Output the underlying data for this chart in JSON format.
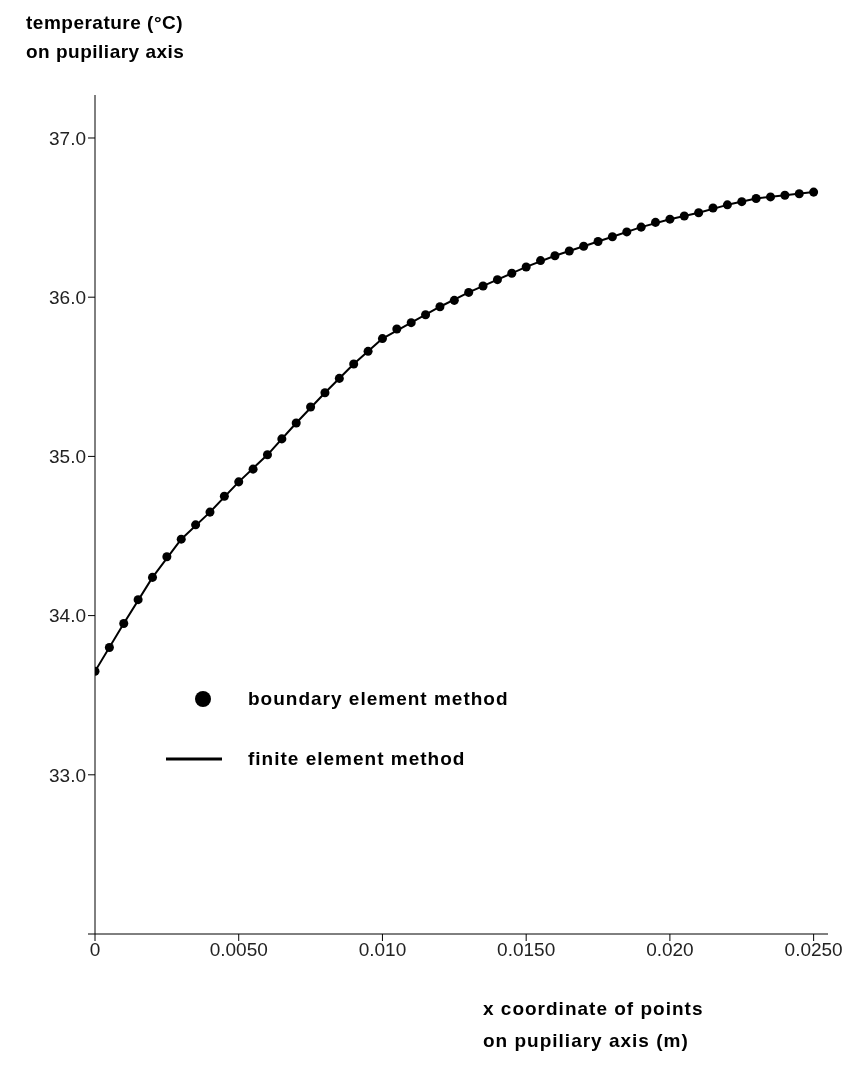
{
  "chart_data": {
    "type": "scatter",
    "ylabel": "temperature (°C)\non pupiliary axis",
    "xlabel": "x coordinate of points\non pupiliary axis (m)",
    "xlim": [
      0,
      0.0255
    ],
    "xticks": [
      0,
      {
        "value": 0.005,
        "label": "0.0050"
      },
      {
        "value": 0.01,
        "label": "0.010"
      },
      {
        "value": 0.015,
        "label": "0.0150"
      },
      {
        "value": 0.02,
        "label": "0.020"
      },
      {
        "value": 0.025,
        "label": "0.0250"
      }
    ],
    "ylim": [
      32,
      37.27
    ],
    "yticks": [
      {
        "value": 32,
        "label": null
      },
      {
        "value": 33,
        "label": "33.0"
      },
      {
        "value": 34,
        "label": "34.0"
      },
      {
        "value": 35,
        "label": "35.0"
      },
      {
        "value": 36,
        "label": "36.0"
      },
      {
        "value": 37,
        "label": "37.0"
      }
    ],
    "grid": false,
    "legend": "bottom left",
    "series": [
      {
        "name": "boundary element method",
        "type": "scatter",
        "marker": "circle",
        "color": "#000000",
        "x": [
          0,
          0.0005,
          0.001,
          0.0015,
          0.002,
          0.0025,
          0.003,
          0.0035,
          0.004,
          0.0045,
          0.005,
          0.0055,
          0.006,
          0.0065,
          0.007,
          0.0075,
          0.008,
          0.0085,
          0.009,
          0.0095,
          0.01,
          0.0105,
          0.011,
          0.0115,
          0.012,
          0.0125,
          0.013,
          0.0135,
          0.014,
          0.0145,
          0.015,
          0.0155,
          0.016,
          0.0165,
          0.017,
          0.0175,
          0.018,
          0.0185,
          0.019,
          0.0195,
          0.02,
          0.0205,
          0.021,
          0.0215,
          0.022,
          0.0225,
          0.023,
          0.0235,
          0.024,
          0.0245,
          0.025
        ],
        "values": [
          33.65,
          33.8,
          33.95,
          34.1,
          34.24,
          34.37,
          34.48,
          34.57,
          34.65,
          34.75,
          34.84,
          34.92,
          35.01,
          35.11,
          35.21,
          35.31,
          35.4,
          35.49,
          35.58,
          35.66,
          35.74,
          35.8,
          35.84,
          35.89,
          35.94,
          35.98,
          36.03,
          36.07,
          36.11,
          36.15,
          36.19,
          36.23,
          36.26,
          36.29,
          36.32,
          36.35,
          36.38,
          36.41,
          36.44,
          36.47,
          36.49,
          36.51,
          36.53,
          36.56,
          36.58,
          36.6,
          36.62,
          36.63,
          36.64,
          36.65,
          36.66
        ]
      },
      {
        "name": "finite element method",
        "type": "line",
        "line_style": "solid",
        "color": "#000000",
        "x": [
          0,
          0.001,
          0.002,
          0.003,
          0.004,
          0.005,
          0.006,
          0.007,
          0.008,
          0.009,
          0.01,
          0.011,
          0.012,
          0.013,
          0.014,
          0.015,
          0.016,
          0.017,
          0.018,
          0.019,
          0.02,
          0.021,
          0.022,
          0.023,
          0.024,
          0.025
        ],
        "values": [
          33.65,
          33.95,
          34.24,
          34.48,
          34.65,
          34.84,
          35.01,
          35.21,
          35.4,
          35.58,
          35.74,
          35.84,
          35.94,
          36.03,
          36.11,
          36.19,
          36.26,
          36.32,
          36.38,
          36.44,
          36.49,
          36.53,
          36.58,
          36.62,
          36.64,
          36.66
        ]
      }
    ]
  }
}
